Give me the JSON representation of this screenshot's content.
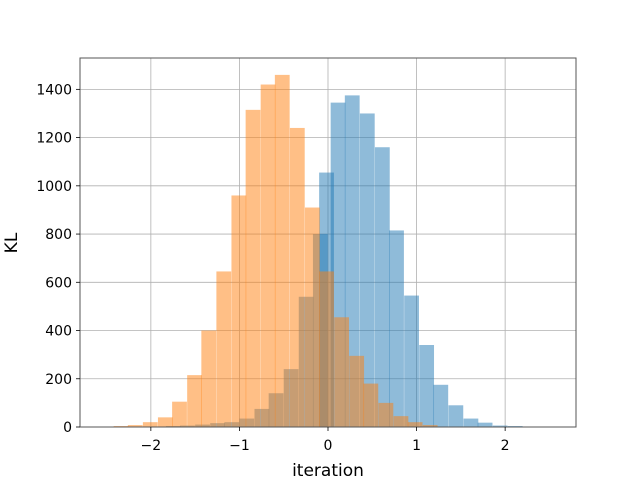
{
  "chart_data": {
    "type": "histogram",
    "xlabel": "iteration",
    "ylabel": "KL",
    "xlim": [
      -2.8,
      2.8
    ],
    "ylim": [
      0,
      1530
    ],
    "grid": true,
    "xticks": [
      -2,
      -1,
      0,
      1,
      2
    ],
    "xtick_labels": [
      "−2",
      "−1",
      "0",
      "1",
      "2"
    ],
    "yticks": [
      0,
      200,
      400,
      600,
      800,
      1000,
      1200,
      1400
    ],
    "bin_width": 0.167,
    "series": [
      {
        "color": "#1f77b4",
        "opacity": 0.5,
        "bins": [
          {
            "x0": -2.0,
            "count": 2
          },
          {
            "x0": -1.83,
            "count": 4
          },
          {
            "x0": -1.67,
            "count": 6
          },
          {
            "x0": -1.5,
            "count": 10
          },
          {
            "x0": -1.33,
            "count": 16
          },
          {
            "x0": -1.17,
            "count": 20
          },
          {
            "x0": -1.0,
            "count": 35
          },
          {
            "x0": -0.83,
            "count": 75
          },
          {
            "x0": -0.67,
            "count": 140
          },
          {
            "x0": -0.5,
            "count": 240
          },
          {
            "x0": -0.33,
            "count": 540
          },
          {
            "x0": -0.17,
            "count": 800
          },
          {
            "x0": -0.1,
            "count": 1055
          },
          {
            "x0": 0.03,
            "count": 1345
          },
          {
            "x0": 0.19,
            "count": 1375
          },
          {
            "x0": 0.36,
            "count": 1300
          },
          {
            "x0": 0.53,
            "count": 1160
          },
          {
            "x0": 0.69,
            "count": 815
          },
          {
            "x0": 0.86,
            "count": 545
          },
          {
            "x0": 1.03,
            "count": 340
          },
          {
            "x0": 1.19,
            "count": 175
          },
          {
            "x0": 1.36,
            "count": 90
          },
          {
            "x0": 1.53,
            "count": 35
          },
          {
            "x0": 1.69,
            "count": 18
          },
          {
            "x0": 1.86,
            "count": 6
          },
          {
            "x0": 2.03,
            "count": 4
          }
        ]
      },
      {
        "color": "#ff7f0e",
        "opacity": 0.5,
        "bins": [
          {
            "x0": -2.42,
            "count": 4
          },
          {
            "x0": -2.26,
            "count": 8
          },
          {
            "x0": -2.09,
            "count": 20
          },
          {
            "x0": -1.92,
            "count": 40
          },
          {
            "x0": -1.76,
            "count": 105
          },
          {
            "x0": -1.59,
            "count": 215
          },
          {
            "x0": -1.43,
            "count": 400
          },
          {
            "x0": -1.26,
            "count": 645
          },
          {
            "x0": -1.09,
            "count": 960
          },
          {
            "x0": -0.93,
            "count": 1315
          },
          {
            "x0": -0.76,
            "count": 1420
          },
          {
            "x0": -0.6,
            "count": 1460
          },
          {
            "x0": -0.43,
            "count": 1240
          },
          {
            "x0": -0.26,
            "count": 910
          },
          {
            "x0": -0.1,
            "count": 645
          },
          {
            "x0": 0.07,
            "count": 455
          },
          {
            "x0": 0.24,
            "count": 295
          },
          {
            "x0": 0.4,
            "count": 180
          },
          {
            "x0": 0.57,
            "count": 100
          },
          {
            "x0": 0.74,
            "count": 45
          },
          {
            "x0": 0.9,
            "count": 20
          },
          {
            "x0": 1.07,
            "count": 8
          }
        ]
      }
    ]
  }
}
